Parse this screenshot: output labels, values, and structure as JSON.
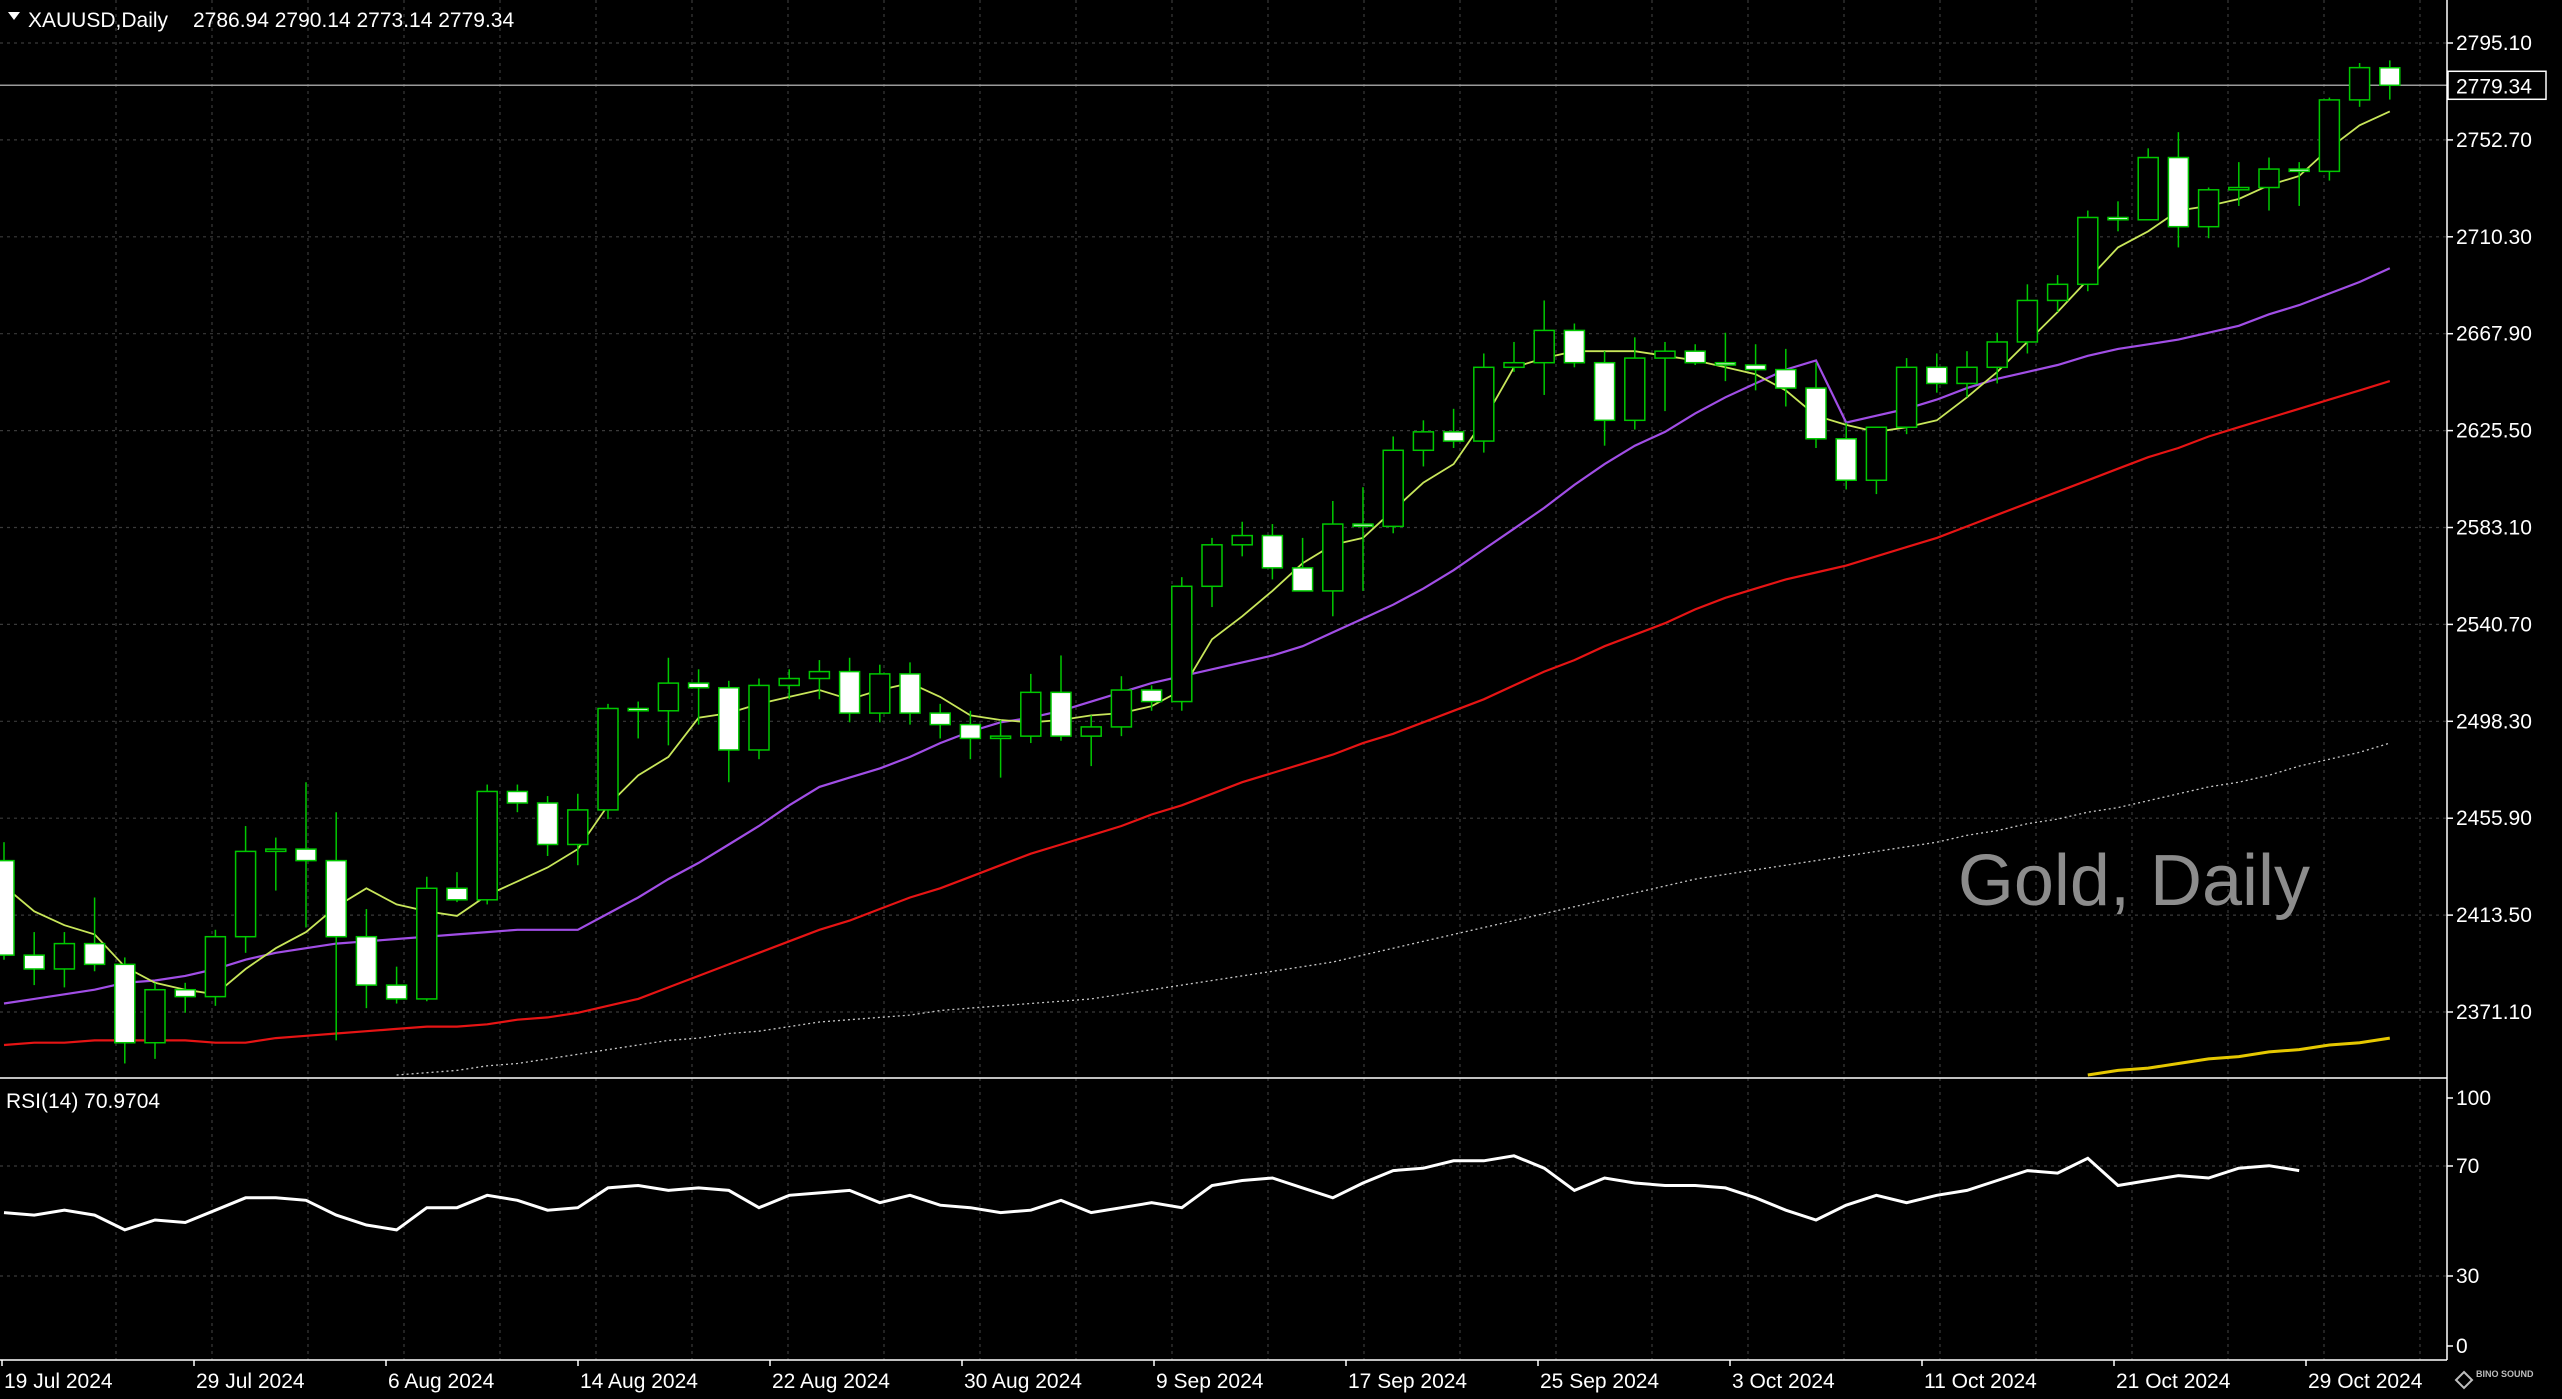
{
  "header": {
    "symbol": "XAUUSD,Daily",
    "ohlc": "2786.94 2790.14 2773.14 2779.34"
  },
  "watermark": "Gold, Daily",
  "rsi_label": "RSI(14) 70.9704",
  "current_price_label": "2779.34",
  "price_axis_labels": [
    "2795.10",
    "2752.70",
    "2710.30",
    "2667.90",
    "2625.50",
    "2583.10",
    "2540.70",
    "2498.30",
    "2455.90",
    "2413.50",
    "2371.10"
  ],
  "rsi_axis_labels": [
    "100",
    "70",
    "30",
    "0"
  ],
  "date_labels": [
    "19 Jul 2024",
    "29 Jul 2024",
    "6 Aug 2024",
    "14 Aug 2024",
    "22 Aug 2024",
    "30 Aug 2024",
    "9 Sep 2024",
    "17 Sep 2024",
    "25 Sep 2024",
    "3 Oct 2024",
    "11 Oct 2024",
    "21 Oct 2024",
    "29 Oct 2024"
  ],
  "logo": "BINO SOUND",
  "colors": {
    "background": "#000000",
    "grid": "#3a3a3a",
    "bull": "#00c800",
    "bear_fill": "#ffffff",
    "ma_fast": "#c8e65a",
    "ma_mid": "#a14ee6",
    "ma_slow": "#e61414",
    "ma_200": "#c8c8c8",
    "ma_extra": "#e6c800",
    "rsi": "#ffffff",
    "price_line": "#9a9a9a"
  },
  "chart_data": [
    {
      "type": "candlestick",
      "title": "XAUUSD,Daily",
      "ylim": [
        2350.0,
        2812.0
      ],
      "current_price": 2779.34,
      "candles": [
        {
          "o": 2443,
          "h": 2451,
          "l": 2400,
          "c": 2402
        },
        {
          "o": 2402,
          "h": 2412,
          "l": 2389,
          "c": 2396
        },
        {
          "o": 2396,
          "h": 2412,
          "l": 2388,
          "c": 2407
        },
        {
          "o": 2407,
          "h": 2427,
          "l": 2395,
          "c": 2398
        },
        {
          "o": 2398,
          "h": 2401,
          "l": 2355,
          "c": 2364
        },
        {
          "o": 2364,
          "h": 2390,
          "l": 2357,
          "c": 2387
        },
        {
          "o": 2387,
          "h": 2390,
          "l": 2377,
          "c": 2384
        },
        {
          "o": 2384,
          "h": 2413,
          "l": 2380,
          "c": 2410
        },
        {
          "o": 2410,
          "h": 2458,
          "l": 2403,
          "c": 2447
        },
        {
          "o": 2447,
          "h": 2453,
          "l": 2430,
          "c": 2448
        },
        {
          "o": 2448,
          "h": 2477,
          "l": 2414,
          "c": 2443
        },
        {
          "o": 2443,
          "h": 2464,
          "l": 2365,
          "c": 2410
        },
        {
          "o": 2410,
          "h": 2422,
          "l": 2379,
          "c": 2389
        },
        {
          "o": 2389,
          "h": 2397,
          "l": 2381,
          "c": 2383
        },
        {
          "o": 2383,
          "h": 2436,
          "l": 2382,
          "c": 2431
        },
        {
          "o": 2431,
          "h": 2438,
          "l": 2425,
          "c": 2426
        },
        {
          "o": 2426,
          "h": 2476,
          "l": 2424,
          "c": 2473
        },
        {
          "o": 2473,
          "h": 2476,
          "l": 2464,
          "c": 2468
        },
        {
          "o": 2468,
          "h": 2471,
          "l": 2445,
          "c": 2450
        },
        {
          "o": 2450,
          "h": 2472,
          "l": 2441,
          "c": 2465
        },
        {
          "o": 2465,
          "h": 2511,
          "l": 2461,
          "c": 2509
        },
        {
          "o": 2509,
          "h": 2512,
          "l": 2496,
          "c": 2508
        },
        {
          "o": 2508,
          "h": 2531,
          "l": 2493,
          "c": 2520
        },
        {
          "o": 2520,
          "h": 2526,
          "l": 2502,
          "c": 2518
        },
        {
          "o": 2518,
          "h": 2521,
          "l": 2477,
          "c": 2491
        },
        {
          "o": 2491,
          "h": 2522,
          "l": 2487,
          "c": 2519
        },
        {
          "o": 2519,
          "h": 2526,
          "l": 2513,
          "c": 2522
        },
        {
          "o": 2522,
          "h": 2530,
          "l": 2513,
          "c": 2525
        },
        {
          "o": 2525,
          "h": 2531,
          "l": 2503,
          "c": 2507
        },
        {
          "o": 2507,
          "h": 2528,
          "l": 2503,
          "c": 2524
        },
        {
          "o": 2524,
          "h": 2529,
          "l": 2502,
          "c": 2507
        },
        {
          "o": 2507,
          "h": 2511,
          "l": 2496,
          "c": 2502
        },
        {
          "o": 2502,
          "h": 2508,
          "l": 2487,
          "c": 2496
        },
        {
          "o": 2496,
          "h": 2504,
          "l": 2479,
          "c": 2497
        },
        {
          "o": 2497,
          "h": 2524,
          "l": 2494,
          "c": 2516
        },
        {
          "o": 2516,
          "h": 2532,
          "l": 2495,
          "c": 2497
        },
        {
          "o": 2497,
          "h": 2506,
          "l": 2484,
          "c": 2501
        },
        {
          "o": 2501,
          "h": 2523,
          "l": 2497,
          "c": 2517
        },
        {
          "o": 2517,
          "h": 2519,
          "l": 2508,
          "c": 2512
        },
        {
          "o": 2512,
          "h": 2566,
          "l": 2508,
          "c": 2562
        },
        {
          "o": 2562,
          "h": 2583,
          "l": 2553,
          "c": 2580
        },
        {
          "o": 2580,
          "h": 2590,
          "l": 2575,
          "c": 2584
        },
        {
          "o": 2584,
          "h": 2589,
          "l": 2565,
          "c": 2570
        },
        {
          "o": 2570,
          "h": 2583,
          "l": 2563,
          "c": 2560
        },
        {
          "o": 2560,
          "h": 2599,
          "l": 2549,
          "c": 2589
        },
        {
          "o": 2589,
          "h": 2605,
          "l": 2560,
          "c": 2588
        },
        {
          "o": 2588,
          "h": 2627,
          "l": 2585,
          "c": 2621
        },
        {
          "o": 2621,
          "h": 2634,
          "l": 2614,
          "c": 2629
        },
        {
          "o": 2629,
          "h": 2639,
          "l": 2622,
          "c": 2625
        },
        {
          "o": 2625,
          "h": 2663,
          "l": 2620,
          "c": 2657
        },
        {
          "o": 2657,
          "h": 2668,
          "l": 2655,
          "c": 2659
        },
        {
          "o": 2659,
          "h": 2686,
          "l": 2645,
          "c": 2673
        },
        {
          "o": 2673,
          "h": 2676,
          "l": 2657,
          "c": 2659
        },
        {
          "o": 2659,
          "h": 2664,
          "l": 2623,
          "c": 2634
        },
        {
          "o": 2634,
          "h": 2670,
          "l": 2630,
          "c": 2661
        },
        {
          "o": 2661,
          "h": 2668,
          "l": 2638,
          "c": 2664
        },
        {
          "o": 2664,
          "h": 2667,
          "l": 2658,
          "c": 2659
        },
        {
          "o": 2659,
          "h": 2672,
          "l": 2651,
          "c": 2658
        },
        {
          "o": 2658,
          "h": 2667,
          "l": 2647,
          "c": 2656
        },
        {
          "o": 2656,
          "h": 2665,
          "l": 2640,
          "c": 2648
        },
        {
          "o": 2648,
          "h": 2659,
          "l": 2622,
          "c": 2626
        },
        {
          "o": 2626,
          "h": 2633,
          "l": 2604,
          "c": 2608
        },
        {
          "o": 2608,
          "h": 2629,
          "l": 2602,
          "c": 2631
        },
        {
          "o": 2631,
          "h": 2661,
          "l": 2628,
          "c": 2657
        },
        {
          "o": 2657,
          "h": 2663,
          "l": 2646,
          "c": 2650
        },
        {
          "o": 2650,
          "h": 2664,
          "l": 2644,
          "c": 2657
        },
        {
          "o": 2657,
          "h": 2672,
          "l": 2650,
          "c": 2668
        },
        {
          "o": 2668,
          "h": 2693,
          "l": 2663,
          "c": 2686
        },
        {
          "o": 2686,
          "h": 2697,
          "l": 2681,
          "c": 2693
        },
        {
          "o": 2693,
          "h": 2725,
          "l": 2690,
          "c": 2722
        },
        {
          "o": 2722,
          "h": 2729,
          "l": 2716,
          "c": 2721
        },
        {
          "o": 2721,
          "h": 2752,
          "l": 2721,
          "c": 2748
        },
        {
          "o": 2748,
          "h": 2759,
          "l": 2709,
          "c": 2718
        },
        {
          "o": 2718,
          "h": 2735,
          "l": 2713,
          "c": 2734
        },
        {
          "o": 2734,
          "h": 2746,
          "l": 2727,
          "c": 2735
        },
        {
          "o": 2735,
          "h": 2748,
          "l": 2725,
          "c": 2743
        },
        {
          "o": 2743,
          "h": 2746,
          "l": 2727,
          "c": 2742
        },
        {
          "o": 2742,
          "h": 2774,
          "l": 2738,
          "c": 2773
        },
        {
          "o": 2773,
          "h": 2789,
          "l": 2770,
          "c": 2787
        },
        {
          "o": 2786.94,
          "h": 2790.14,
          "l": 2773.14,
          "c": 2779.34
        }
      ],
      "ma_fast": [
        2432,
        2421,
        2415,
        2411,
        2397,
        2390,
        2387,
        2385,
        2396,
        2405,
        2412,
        2423,
        2431,
        2424,
        2421,
        2419,
        2428,
        2434,
        2440,
        2448,
        2467,
        2480,
        2488,
        2505,
        2507,
        2511,
        2514,
        2517,
        2513,
        2517,
        2520,
        2514,
        2506,
        2504,
        2503,
        2504,
        2506,
        2507,
        2510,
        2517,
        2539,
        2549,
        2560,
        2572,
        2580,
        2583,
        2595,
        2607,
        2615,
        2634,
        2657,
        2661,
        2664,
        2664,
        2664,
        2662,
        2660,
        2657,
        2654,
        2647,
        2636,
        2632,
        2629,
        2631,
        2634,
        2644,
        2655,
        2668,
        2681,
        2695,
        2709,
        2716,
        2725,
        2727,
        2730,
        2736,
        2740,
        2752,
        2762,
        2768
      ],
      "ma_mid": [
        2381,
        2383,
        2385,
        2387,
        2390,
        2391,
        2393,
        2396,
        2400,
        2403,
        2405,
        2407,
        2408,
        2409,
        2410,
        2411,
        2412,
        2413,
        2413,
        2413,
        2420,
        2427,
        2435,
        2442,
        2450,
        2458,
        2467,
        2475,
        2479,
        2483,
        2488,
        2494,
        2499,
        2503,
        2505,
        2508,
        2512,
        2516,
        2520,
        2523,
        2526,
        2529,
        2532,
        2536,
        2542,
        2548,
        2554,
        2561,
        2569,
        2578,
        2587,
        2596,
        2606,
        2615,
        2623,
        2629,
        2637,
        2644,
        2650,
        2656,
        2660,
        2633,
        2636,
        2639,
        2643,
        2648,
        2652,
        2655,
        2658,
        2662,
        2665,
        2667,
        2669,
        2672,
        2675,
        2680,
        2684,
        2689,
        2694,
        2700
      ],
      "ma_slow": [
        2363,
        2364,
        2364,
        2365,
        2365,
        2365,
        2365,
        2364,
        2364,
        2366,
        2367,
        2368,
        2369,
        2370,
        2371,
        2371,
        2372,
        2374,
        2375,
        2377,
        2380,
        2383,
        2388,
        2393,
        2398,
        2403,
        2408,
        2413,
        2417,
        2422,
        2427,
        2431,
        2436,
        2441,
        2446,
        2450,
        2454,
        2458,
        2463,
        2467,
        2472,
        2477,
        2481,
        2485,
        2489,
        2494,
        2498,
        2503,
        2508,
        2513,
        2519,
        2525,
        2530,
        2536,
        2541,
        2546,
        2552,
        2557,
        2561,
        2565,
        2568,
        2571,
        2575,
        2579,
        2583,
        2588,
        2593,
        2598,
        2603,
        2608,
        2613,
        2618,
        2622,
        2627,
        2631,
        2635,
        2639,
        2643,
        2647,
        2651
      ],
      "ma_200": [
        2345,
        2345,
        2346,
        2346,
        2346,
        2346,
        2347,
        2347,
        2348,
        2348,
        2349,
        2349,
        2349,
        2350,
        2351,
        2352,
        2354,
        2355,
        2357,
        2359,
        2361,
        2363,
        2365,
        2366,
        2368,
        2369,
        2371,
        2373,
        2374,
        2375,
        2376,
        2378,
        2379,
        2380,
        2381,
        2382,
        2383,
        2385,
        2387,
        2389,
        2391,
        2393,
        2395,
        2397,
        2399,
        2402,
        2405,
        2408,
        2411,
        2414,
        2417,
        2420,
        2423,
        2426,
        2429,
        2432,
        2435,
        2437,
        2439,
        2441,
        2443,
        2445,
        2447,
        2449,
        2451,
        2454,
        2456,
        2459,
        2461,
        2464,
        2466,
        2469,
        2472,
        2475,
        2477,
        2480,
        2484,
        2487,
        2490,
        2494
      ],
      "ma_extra": [
        null,
        null,
        null,
        null,
        null,
        null,
        null,
        null,
        null,
        null,
        null,
        null,
        null,
        null,
        null,
        null,
        null,
        null,
        null,
        null,
        null,
        null,
        null,
        null,
        null,
        null,
        null,
        null,
        null,
        null,
        null,
        null,
        null,
        null,
        null,
        null,
        null,
        null,
        null,
        null,
        null,
        null,
        null,
        null,
        null,
        null,
        null,
        null,
        null,
        null,
        null,
        null,
        null,
        null,
        null,
        null,
        null,
        null,
        null,
        null,
        null,
        null,
        null,
        null,
        null,
        null,
        null,
        null,
        2349,
        2350,
        2352,
        2353,
        2355,
        2357,
        2358,
        2360,
        2361,
        2363,
        2364,
        2366
      ]
    },
    {
      "type": "line",
      "title": "RSI(14) 70.9704",
      "ylim": [
        0,
        100
      ],
      "values": [
        54,
        53,
        55,
        53,
        47,
        51,
        50,
        55,
        60,
        60,
        59,
        53,
        49,
        47,
        56,
        56,
        61,
        59,
        55,
        56,
        64,
        65,
        63,
        64,
        63,
        56,
        61,
        62,
        63,
        58,
        61,
        57,
        56,
        54,
        55,
        59,
        54,
        56,
        58,
        56,
        65,
        67,
        68,
        64,
        60,
        66,
        71,
        72,
        75,
        75,
        77,
        72,
        63,
        68,
        66,
        65,
        65,
        64,
        60,
        55,
        51,
        57,
        61,
        58,
        61,
        63,
        67,
        71,
        70,
        76,
        65,
        67,
        69,
        68,
        72,
        73,
        71
      ]
    }
  ]
}
